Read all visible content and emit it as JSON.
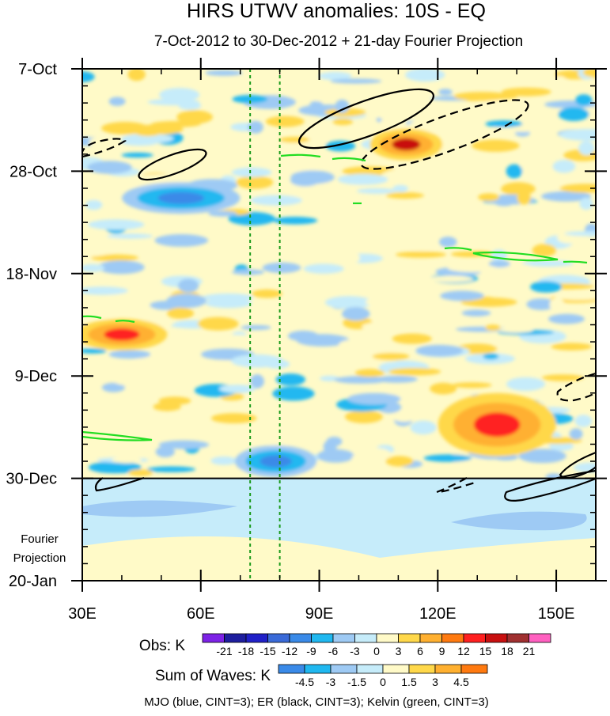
{
  "chart_data": {
    "type": "heatmap",
    "title": "HIRS UTWV anomalies: 10S - EQ",
    "subtitle": "7-Oct-2012 to 30-Dec-2012 + 21-day Fourier Projection",
    "x_range_deg_east": [
      30,
      160
    ],
    "x_ticks": [
      {
        "value": 30,
        "label": "30E"
      },
      {
        "value": 60,
        "label": "60E"
      },
      {
        "value": 90,
        "label": "90E"
      },
      {
        "value": 120,
        "label": "120E"
      },
      {
        "value": 150,
        "label": "150E"
      }
    ],
    "y_range_days_from_7oct": [
      0,
      105
    ],
    "y_ticks": [
      {
        "value": 0,
        "label": "7-Oct"
      },
      {
        "value": 21,
        "label": "28-Oct"
      },
      {
        "value": 42,
        "label": "18-Nov"
      },
      {
        "value": 63,
        "label": "9-Dec"
      },
      {
        "value": 84,
        "label": "30-Dec"
      },
      {
        "value": 105,
        "label": "20-Jan"
      }
    ],
    "projection_start_day": 84,
    "projection_label_lines": [
      "Fourier",
      "Projection"
    ],
    "reference_longitudes_deg": [
      72.5,
      80
    ],
    "legend_obs": {
      "label": "Obs: K",
      "levels": [
        "-21",
        "-18",
        "-15",
        "-12",
        "-9",
        "-6",
        "-3",
        "0",
        "3",
        "6",
        "9",
        "12",
        "15",
        "18",
        "21"
      ],
      "colors": [
        "#7d22e6",
        "#1e1e9e",
        "#2020c8",
        "#3a6ad8",
        "#3a8ae8",
        "#20b8f0",
        "#9ecaf4",
        "#c6ecfa",
        "#fffac8",
        "#ffd84a",
        "#ffb030",
        "#ff7a10",
        "#ff2020",
        "#c81010",
        "#a03030",
        "#ff60c0"
      ]
    },
    "legend_waves": {
      "label": "Sum of Waves: K",
      "levels": [
        "-4.5",
        "-3",
        "-1.5",
        "0",
        "1.5",
        "3",
        "4.5"
      ],
      "colors": [
        "#3a8ae8",
        "#20b8f0",
        "#9ecaf4",
        "#c6ecfa",
        "#fffac8",
        "#ffd84a",
        "#ffb030",
        "#ff7a10"
      ]
    },
    "footer": "MJO (blue, CINT=3); ER (black, CINT=3); Kelvin (green, CINT=3)",
    "anomaly_features": [
      {
        "sign": "positive",
        "lon": [
          104,
          120
        ],
        "day": [
          13,
          18
        ],
        "peak": 15
      },
      {
        "sign": "positive",
        "lon": [
          122,
          148
        ],
        "day": [
          68,
          78
        ],
        "peak": 12
      },
      {
        "sign": "positive",
        "lon": [
          30,
          50
        ],
        "day": [
          52,
          57
        ],
        "peak": 9
      },
      {
        "sign": "negative",
        "lon": [
          42,
          68
        ],
        "day": [
          24,
          29
        ],
        "peak": -9
      },
      {
        "sign": "negative",
        "lon": [
          70,
          88
        ],
        "day": [
          78,
          83
        ],
        "peak": -9
      }
    ]
  }
}
